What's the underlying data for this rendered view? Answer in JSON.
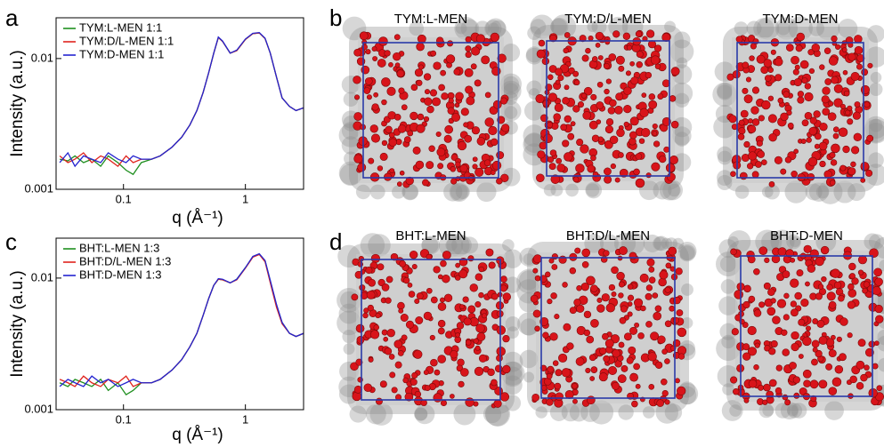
{
  "panel_labels": [
    "a",
    "b",
    "c",
    "d"
  ],
  "snapshots_b": [
    "TYM:L-MEN",
    "TYM:D/L-MEN",
    "TYM:D-MEN"
  ],
  "snapshots_d": [
    "BHT:L-MEN",
    "BHT:D/L-MEN",
    "BHT:D-MEN"
  ],
  "chart_data": [
    {
      "type": "line",
      "x_label": "q (Å⁻¹)",
      "y_label": "Intensity (a.u.)",
      "log_x": true,
      "log_y": true,
      "grid": false,
      "legend": "top-left",
      "xlim": [
        0.028,
        3.0
      ],
      "ylim": [
        0.001,
        0.0205
      ],
      "xticks": [
        0.1,
        1
      ],
      "yticks": [
        0.001,
        0.01
      ],
      "x": [
        0.03,
        0.035,
        0.04,
        0.047,
        0.055,
        0.065,
        0.075,
        0.09,
        0.105,
        0.12,
        0.14,
        0.17,
        0.2,
        0.25,
        0.3,
        0.35,
        0.4,
        0.45,
        0.5,
        0.55,
        0.6,
        0.65,
        0.75,
        0.85,
        1.0,
        1.15,
        1.3,
        1.45,
        1.6,
        1.8,
        2.0,
        2.3,
        2.6,
        3.0
      ],
      "series": [
        {
          "name": "TYM:L-MEN 1:1",
          "color": "#1f8f1f",
          "values": [
            0.0017,
            0.00165,
            0.0018,
            0.0016,
            0.0017,
            0.0015,
            0.0018,
            0.0016,
            0.0014,
            0.0013,
            0.0016,
            0.0017,
            0.0018,
            0.0021,
            0.0025,
            0.0031,
            0.004,
            0.0055,
            0.0078,
            0.011,
            0.0145,
            0.0135,
            0.011,
            0.0115,
            0.014,
            0.0155,
            0.0157,
            0.0142,
            0.011,
            0.0072,
            0.005,
            0.0043,
            0.004,
            0.0042
          ]
        },
        {
          "name": "TYM:D/L-MEN 1:1",
          "color": "#e0231c",
          "values": [
            0.0018,
            0.0016,
            0.0017,
            0.0019,
            0.0016,
            0.0018,
            0.0017,
            0.0015,
            0.0018,
            0.0016,
            0.0017,
            0.0017,
            0.0018,
            0.0021,
            0.0025,
            0.0031,
            0.004,
            0.0055,
            0.0078,
            0.011,
            0.0145,
            0.0135,
            0.011,
            0.0115,
            0.014,
            0.0155,
            0.0157,
            0.0142,
            0.011,
            0.0072,
            0.005,
            0.0043,
            0.004,
            0.0042
          ]
        },
        {
          "name": "TYM:D-MEN 1:1",
          "color": "#2424d0",
          "values": [
            0.0016,
            0.0019,
            0.0015,
            0.0018,
            0.0017,
            0.0016,
            0.0019,
            0.0017,
            0.0016,
            0.0018,
            0.0017,
            0.0017,
            0.0018,
            0.0021,
            0.0025,
            0.0031,
            0.004,
            0.0055,
            0.0078,
            0.011,
            0.0146,
            0.0136,
            0.011,
            0.0116,
            0.0141,
            0.0156,
            0.0158,
            0.0143,
            0.011,
            0.0072,
            0.005,
            0.0043,
            0.004,
            0.0042
          ]
        }
      ]
    },
    {
      "type": "line",
      "x_label": "q (Å⁻¹)",
      "y_label": "Intensity (a.u.)",
      "log_x": true,
      "log_y": true,
      "grid": false,
      "legend": "top-left",
      "xlim": [
        0.028,
        3.0
      ],
      "ylim": [
        0.001,
        0.0201
      ],
      "xticks": [
        0.1,
        1
      ],
      "yticks": [
        0.001,
        0.01
      ],
      "x": [
        0.03,
        0.035,
        0.04,
        0.047,
        0.055,
        0.065,
        0.075,
        0.09,
        0.105,
        0.12,
        0.14,
        0.17,
        0.2,
        0.25,
        0.3,
        0.35,
        0.4,
        0.45,
        0.5,
        0.55,
        0.6,
        0.65,
        0.75,
        0.85,
        1.0,
        1.15,
        1.3,
        1.45,
        1.6,
        1.8,
        2.0,
        2.3,
        2.6,
        3.0
      ],
      "series": [
        {
          "name": "BHT:L-MEN 1:3",
          "color": "#1f8f1f",
          "values": [
            0.0016,
            0.0015,
            0.0017,
            0.0016,
            0.0015,
            0.0017,
            0.0014,
            0.0016,
            0.0013,
            0.0014,
            0.0016,
            0.0016,
            0.0017,
            0.002,
            0.0024,
            0.003,
            0.0038,
            0.0052,
            0.007,
            0.0088,
            0.0098,
            0.0097,
            0.0092,
            0.0098,
            0.012,
            0.0145,
            0.0152,
            0.0135,
            0.0095,
            0.0062,
            0.0046,
            0.0038,
            0.0036,
            0.0038
          ]
        },
        {
          "name": "BHT:D/L-MEN 1:3",
          "color": "#e0231c",
          "values": [
            0.0017,
            0.0016,
            0.0015,
            0.0018,
            0.0016,
            0.0015,
            0.0017,
            0.0016,
            0.0018,
            0.0015,
            0.0016,
            0.0016,
            0.0017,
            0.002,
            0.0024,
            0.003,
            0.0038,
            0.0052,
            0.007,
            0.0088,
            0.0098,
            0.0097,
            0.0092,
            0.0097,
            0.0119,
            0.0144,
            0.0151,
            0.0133,
            0.0092,
            0.006,
            0.0045,
            0.0038,
            0.0036,
            0.0038
          ]
        },
        {
          "name": "BHT:D-MEN 1:3",
          "color": "#2424d0",
          "values": [
            0.0015,
            0.0017,
            0.0016,
            0.0015,
            0.0018,
            0.0016,
            0.0017,
            0.0015,
            0.0016,
            0.0017,
            0.0016,
            0.0016,
            0.0017,
            0.002,
            0.0024,
            0.003,
            0.0038,
            0.0052,
            0.007,
            0.0088,
            0.0099,
            0.0098,
            0.0092,
            0.0098,
            0.012,
            0.0146,
            0.0153,
            0.0136,
            0.0096,
            0.0063,
            0.0046,
            0.0038,
            0.0036,
            0.0038
          ]
        }
      ]
    }
  ]
}
